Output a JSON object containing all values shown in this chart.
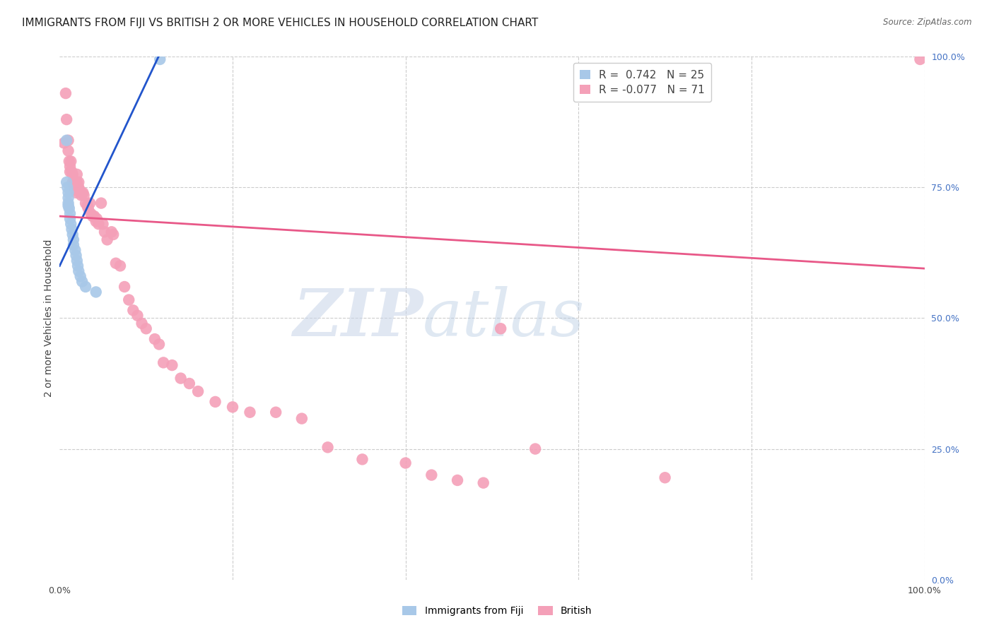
{
  "title": "IMMIGRANTS FROM FIJI VS BRITISH 2 OR MORE VEHICLES IN HOUSEHOLD CORRELATION CHART",
  "source": "Source: ZipAtlas.com",
  "ylabel": "2 or more Vehicles in Household",
  "xlim": [
    0.0,
    1.0
  ],
  "ylim": [
    0.0,
    1.0
  ],
  "fiji_R": 0.742,
  "fiji_N": 25,
  "british_R": -0.077,
  "british_N": 71,
  "fiji_color": "#a8c8e8",
  "british_color": "#f4a0b8",
  "fiji_line_color": "#2255cc",
  "british_line_color": "#e85888",
  "fiji_line_x": [
    0.0,
    0.12
  ],
  "fiji_line_y": [
    0.6,
    1.02
  ],
  "british_line_x": [
    0.0,
    1.0
  ],
  "british_line_y": [
    0.695,
    0.595
  ],
  "fiji_points_x": [
    0.008,
    0.008,
    0.009,
    0.01,
    0.01,
    0.01,
    0.01,
    0.011,
    0.012,
    0.012,
    0.013,
    0.014,
    0.015,
    0.016,
    0.016,
    0.018,
    0.019,
    0.02,
    0.021,
    0.022,
    0.024,
    0.026,
    0.03,
    0.042,
    0.116
  ],
  "fiji_points_y": [
    0.84,
    0.76,
    0.75,
    0.74,
    0.73,
    0.72,
    0.715,
    0.71,
    0.7,
    0.69,
    0.68,
    0.67,
    0.66,
    0.65,
    0.64,
    0.63,
    0.62,
    0.61,
    0.6,
    0.59,
    0.58,
    0.57,
    0.56,
    0.55,
    0.995
  ],
  "british_points_x": [
    0.005,
    0.007,
    0.008,
    0.01,
    0.01,
    0.011,
    0.012,
    0.012,
    0.013,
    0.014,
    0.015,
    0.015,
    0.016,
    0.017,
    0.018,
    0.019,
    0.02,
    0.02,
    0.022,
    0.022,
    0.023,
    0.025,
    0.025,
    0.027,
    0.028,
    0.03,
    0.032,
    0.033,
    0.035,
    0.036,
    0.038,
    0.04,
    0.042,
    0.043,
    0.045,
    0.048,
    0.05,
    0.052,
    0.055,
    0.06,
    0.062,
    0.065,
    0.07,
    0.075,
    0.08,
    0.085,
    0.09,
    0.095,
    0.1,
    0.11,
    0.115,
    0.12,
    0.13,
    0.14,
    0.15,
    0.16,
    0.18,
    0.2,
    0.22,
    0.25,
    0.28,
    0.31,
    0.35,
    0.4,
    0.43,
    0.46,
    0.49,
    0.51,
    0.55,
    0.7,
    0.995
  ],
  "british_points_y": [
    0.835,
    0.93,
    0.88,
    0.84,
    0.82,
    0.8,
    0.79,
    0.78,
    0.8,
    0.78,
    0.775,
    0.76,
    0.755,
    0.75,
    0.745,
    0.74,
    0.775,
    0.76,
    0.76,
    0.75,
    0.745,
    0.74,
    0.735,
    0.74,
    0.735,
    0.72,
    0.715,
    0.71,
    0.72,
    0.7,
    0.695,
    0.695,
    0.685,
    0.69,
    0.68,
    0.72,
    0.68,
    0.665,
    0.65,
    0.665,
    0.66,
    0.605,
    0.6,
    0.56,
    0.535,
    0.515,
    0.505,
    0.49,
    0.48,
    0.46,
    0.45,
    0.415,
    0.41,
    0.385,
    0.375,
    0.36,
    0.34,
    0.33,
    0.32,
    0.32,
    0.308,
    0.253,
    0.23,
    0.223,
    0.2,
    0.19,
    0.185,
    0.48,
    0.25,
    0.195,
    0.995
  ],
  "watermark_zip": "ZIP",
  "watermark_atlas": "atlas",
  "background_color": "#ffffff",
  "grid_color": "#cccccc",
  "right_tick_color": "#4472c4",
  "title_fontsize": 11,
  "axis_label_fontsize": 10,
  "tick_fontsize": 9,
  "legend_fontsize": 11,
  "source_fontsize": 8.5
}
